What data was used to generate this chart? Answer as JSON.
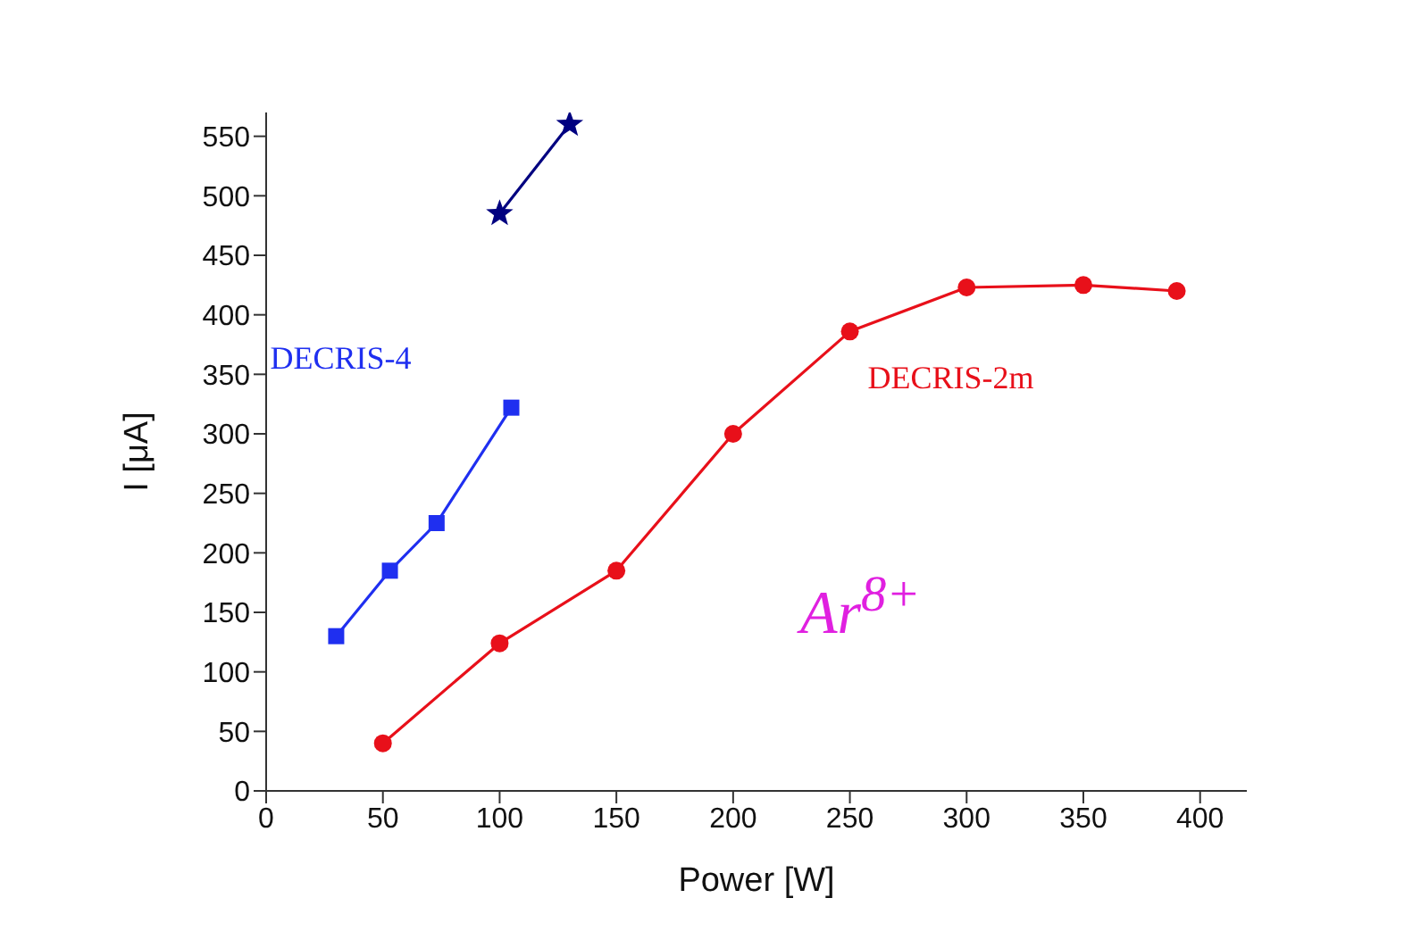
{
  "chart_data": {
    "type": "line",
    "xlabel": "Power [W]",
    "ylabel": "I [μA]",
    "xlim": [
      0,
      420
    ],
    "xticks": [
      0,
      50,
      100,
      150,
      200,
      250,
      300,
      350,
      400
    ],
    "ylim": [
      0,
      570
    ],
    "yticks": [
      0,
      50,
      100,
      150,
      200,
      250,
      300,
      350,
      400,
      450,
      500,
      550
    ],
    "series": [
      {
        "color": "#000080",
        "marker": "star",
        "x": [
          100,
          130
        ],
        "values": [
          485,
          560
        ]
      },
      {
        "name": "DECRIS-4",
        "color": "#1f2ff0",
        "marker": "square",
        "x": [
          30,
          53,
          73,
          105
        ],
        "values": [
          130,
          185,
          225,
          322
        ]
      },
      {
        "name": "DECRIS-2m",
        "color": "#e8101a",
        "marker": "circle",
        "x": [
          50,
          100,
          150,
          200,
          250,
          300,
          350,
          390
        ],
        "values": [
          40,
          124,
          185,
          300,
          386,
          423,
          425,
          420
        ]
      }
    ],
    "annotations": [
      "Ar$^{8+}$"
    ]
  }
}
